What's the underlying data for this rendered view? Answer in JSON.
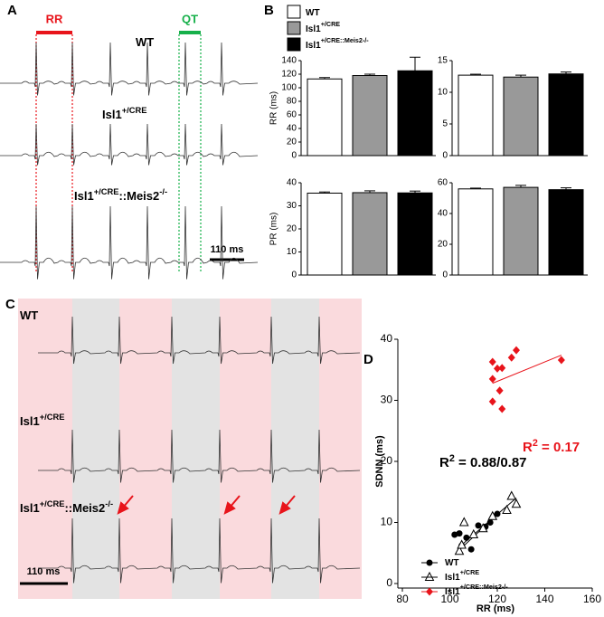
{
  "panel_labels": [
    "A",
    "B",
    "C",
    "D"
  ],
  "panel_A": {
    "rr": "RR",
    "qt": "QT",
    "genotypes": [
      [
        {
          "text": "WT"
        }
      ],
      [
        {
          "text": "Isl1"
        },
        {
          "text": "+/CRE",
          "sup": true
        }
      ],
      [
        {
          "text": "Isl1"
        },
        {
          "text": "+/CRE",
          "sup": true
        },
        {
          "text": "::Meis2"
        },
        {
          "text": "-/-",
          "sup": true
        }
      ]
    ],
    "scale_bar": "110 ms"
  },
  "panel_B_legend": [
    {
      "name": [
        {
          "text": "WT"
        }
      ],
      "color": "#ffffff"
    },
    {
      "name": [
        {
          "text": "Isl1"
        },
        {
          "text": "+/CRE",
          "sup": true
        }
      ],
      "color": "#999999"
    },
    {
      "name": [
        {
          "text": "Isl1"
        },
        {
          "text": "+/CRE::Meis2-/-",
          "sup": true
        }
      ],
      "color": "#000000"
    }
  ],
  "panel_C": {
    "genotypes": [
      [
        {
          "text": "WT"
        }
      ],
      [
        {
          "text": "Isl1"
        },
        {
          "text": "+/CRE",
          "sup": true
        }
      ],
      [
        {
          "text": "Isl1"
        },
        {
          "text": "+/CRE",
          "sup": true
        },
        {
          "text": "::Meis2"
        },
        {
          "text": "-/-",
          "sup": true
        }
      ]
    ],
    "scale_bar": "110 ms"
  },
  "chart_data": [
    {
      "type": "bar",
      "y_label": "RR (ms)",
      "categories": [
        null,
        null,
        null
      ],
      "values": [
        113,
        118,
        125
      ],
      "errors": [
        2,
        2,
        20
      ],
      "colors": [
        "#ffffff",
        "#999999",
        "#000000"
      ],
      "ylim": [
        0,
        140
      ],
      "yticks": [
        0,
        20,
        40,
        60,
        80,
        100,
        120,
        140
      ]
    },
    {
      "type": "bar",
      "y_label": "QRS (ms)",
      "categories": [
        null,
        null,
        null
      ],
      "values": [
        12.7,
        12.4,
        12.9
      ],
      "errors": [
        0.15,
        0.3,
        0.3
      ],
      "colors": [
        "#ffffff",
        "#999999",
        "#000000"
      ],
      "ylim": [
        0,
        15
      ],
      "yticks": [
        0,
        5,
        10,
        15
      ]
    },
    {
      "type": "bar",
      "y_label": "PR (ms)",
      "categories": [
        null,
        null,
        null
      ],
      "values": [
        35.5,
        35.7,
        35.6
      ],
      "errors": [
        0.5,
        0.8,
        0.8
      ],
      "colors": [
        "#ffffff",
        "#999999",
        "#000000"
      ],
      "ylim": [
        0,
        40
      ],
      "yticks": [
        0,
        10,
        20,
        30,
        40
      ]
    },
    {
      "type": "bar",
      "y_label": "QT (ms)",
      "categories": [
        null,
        null,
        null
      ],
      "values": [
        56,
        57,
        55.5
      ],
      "errors": [
        0.5,
        1.3,
        1.2
      ],
      "colors": [
        "#ffffff",
        "#999999",
        "#000000"
      ],
      "ylim": [
        0,
        60
      ],
      "yticks": [
        0,
        20,
        40,
        60
      ]
    },
    {
      "type": "scatter",
      "x_label": "RR (ms)",
      "y_label": "SDNN (ms)",
      "xlim": [
        80,
        160
      ],
      "ylim": [
        0,
        40
      ],
      "xticks": [
        80,
        100,
        120,
        140,
        160
      ],
      "yticks": [
        0,
        10,
        20,
        30,
        40
      ],
      "series": [
        {
          "name": [
            {
              "text": "WT"
            }
          ],
          "color": "#000000",
          "marker": "circle",
          "x": [
            102,
            104,
            105,
            107,
            109,
            112,
            115,
            117,
            120
          ],
          "y": [
            8,
            8.2,
            6.2,
            7.5,
            5.6,
            9.5,
            9.3,
            10,
            11.4
          ],
          "fit": {
            "x": [
              104,
              120
            ],
            "y": [
              5.5,
              11.3
            ]
          }
        },
        {
          "name": [
            {
              "text": "Isl1"
            },
            {
              "text": "+/CRE",
              "sup": true
            }
          ],
          "color": "#000000",
          "marker": "triangle",
          "x": [
            104,
            105,
            106,
            110,
            114,
            118,
            124,
            126,
            128
          ],
          "y": [
            5.3,
            6.3,
            10,
            8,
            9,
            11,
            12,
            14.3,
            13
          ],
          "fit": {
            "x": [
              104,
              128
            ],
            "y": [
              6,
              14
            ]
          }
        },
        {
          "name": [
            {
              "text": "Isl1"
            },
            {
              "text": "+/CRE::Meis2-/-",
              "sup": true
            }
          ],
          "color": "#e8141b",
          "marker": "diamond",
          "x": [
            118,
            120,
            122,
            126,
            128,
            147,
            118,
            121,
            122,
            118
          ],
          "y": [
            36.3,
            35.2,
            35.3,
            37,
            38.2,
            36.6,
            29.8,
            31.6,
            28.6,
            33.5
          ],
          "fit": {
            "x": [
              118,
              147
            ],
            "y": [
              32.8,
              37.4
            ]
          }
        }
      ],
      "annotations": [
        [
          {
            "text": "R"
          },
          {
            "text": "2",
            "sup": true
          },
          {
            "text": " = 0.17"
          }
        ],
        [
          {
            "text": "R"
          },
          {
            "text": "2",
            "sup": true
          },
          {
            "text": " = 0.88/0.87"
          }
        ]
      ]
    }
  ]
}
